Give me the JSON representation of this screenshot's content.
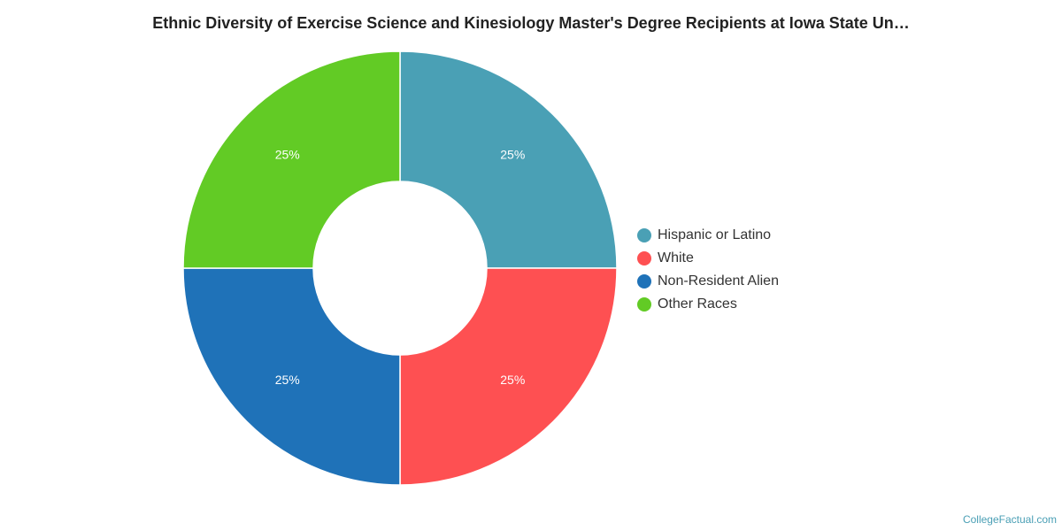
{
  "chart_data": {
    "type": "pie",
    "title": "Ethnic Diversity of Exercise Science and Kinesiology Master's Degree Recipients at Iowa State Un…",
    "categories": [
      "Hispanic or Latino",
      "White",
      "Non-Resident Alien",
      "Other Races"
    ],
    "values": [
      25,
      25,
      25,
      25
    ],
    "data_labels": [
      "25%",
      "25%",
      "25%",
      "25%"
    ],
    "colors": [
      "#4aa0b5",
      "#fe5052",
      "#1f72b8",
      "#62cb25"
    ],
    "donut": true,
    "legend_position": "right"
  },
  "credit": "CollegeFactual.com"
}
